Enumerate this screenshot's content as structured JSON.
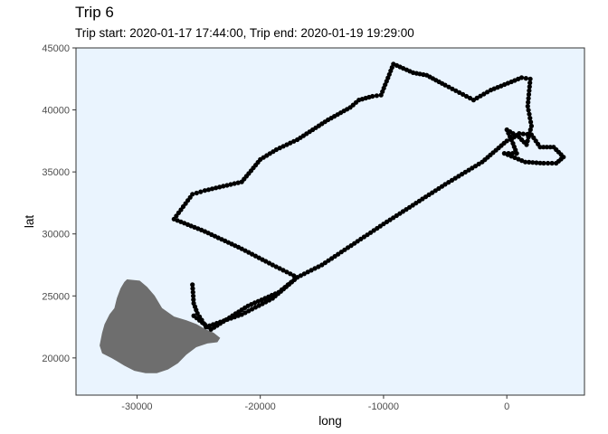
{
  "chart_data": {
    "type": "scatter",
    "title": "Trip 6",
    "subtitle": "Trip start: 2020-01-17 17:44:00, Trip end: 2020-01-19 19:29:00",
    "xlabel": "long",
    "ylabel": "lat",
    "xlim": [
      -34950,
      6300
    ],
    "ylim": [
      17000,
      45000
    ],
    "x_ticks": [
      {
        "value": -30000,
        "label": "-30000"
      },
      {
        "value": -20000,
        "label": "-20000"
      },
      {
        "value": -10000,
        "label": "-10000"
      },
      {
        "value": 0,
        "label": "0"
      }
    ],
    "y_ticks": [
      {
        "value": 20000,
        "label": "20000"
      },
      {
        "value": 25000,
        "label": "25000"
      },
      {
        "value": 30000,
        "label": "30000"
      },
      {
        "value": 35000,
        "label": "35000"
      },
      {
        "value": 40000,
        "label": "40000"
      },
      {
        "value": 45000,
        "label": "45000"
      }
    ],
    "grid": false,
    "legend": "none",
    "colors": {
      "panel_background": "#eaf4fe",
      "panel_border": "#333333",
      "points": "#000000",
      "land": "#6e6e6e"
    },
    "land_polygon": [
      [
        -30800,
        26300
      ],
      [
        -29800,
        26200
      ],
      [
        -29200,
        25700
      ],
      [
        -28600,
        25000
      ],
      [
        -28000,
        24000
      ],
      [
        -27000,
        23300
      ],
      [
        -26000,
        23000
      ],
      [
        -25200,
        22700
      ],
      [
        -24500,
        22300
      ],
      [
        -23800,
        22000
      ],
      [
        -23300,
        21600
      ],
      [
        -23500,
        21300
      ],
      [
        -24300,
        21200
      ],
      [
        -25200,
        20900
      ],
      [
        -26000,
        20300
      ],
      [
        -26700,
        19600
      ],
      [
        -27500,
        19100
      ],
      [
        -28400,
        18800
      ],
      [
        -29300,
        18800
      ],
      [
        -30200,
        19000
      ],
      [
        -31000,
        19400
      ],
      [
        -32000,
        20000
      ],
      [
        -32800,
        20400
      ],
      [
        -33000,
        21000
      ],
      [
        -32800,
        22000
      ],
      [
        -32600,
        22700
      ],
      [
        -32200,
        23500
      ],
      [
        -31800,
        24000
      ],
      [
        -31600,
        24800
      ],
      [
        -31300,
        25600
      ],
      [
        -31000,
        26100
      ]
    ],
    "track_waypoints": [
      [
        -25500,
        25900
      ],
      [
        -25400,
        24400
      ],
      [
        -25100,
        23600
      ],
      [
        -24400,
        22500
      ],
      [
        -21500,
        23500
      ],
      [
        -19000,
        24800
      ],
      [
        -17000,
        26500
      ],
      [
        -19000,
        27500
      ],
      [
        -21500,
        28800
      ],
      [
        -24500,
        30200
      ],
      [
        -27000,
        31200
      ],
      [
        -25500,
        33200
      ],
      [
        -24500,
        33500
      ],
      [
        -21500,
        34200
      ],
      [
        -20000,
        36000
      ],
      [
        -18700,
        36800
      ],
      [
        -17000,
        37600
      ],
      [
        -14500,
        39200
      ],
      [
        -12700,
        40200
      ],
      [
        -12000,
        40800
      ],
      [
        -10900,
        41100
      ],
      [
        -10200,
        41200
      ],
      [
        -9200,
        43700
      ],
      [
        -7600,
        43000
      ],
      [
        -6500,
        42800
      ],
      [
        -5000,
        42000
      ],
      [
        -2700,
        40800
      ],
      [
        -1300,
        41600
      ],
      [
        1200,
        42600
      ],
      [
        1900,
        42500
      ],
      [
        1700,
        40300
      ],
      [
        2000,
        38700
      ],
      [
        1600,
        37200
      ],
      [
        1000,
        37800
      ],
      [
        0,
        38400
      ],
      [
        500,
        37300
      ],
      [
        800,
        36500
      ],
      [
        -200,
        36500
      ],
      [
        1500,
        35800
      ],
      [
        3000,
        35700
      ],
      [
        4000,
        35700
      ],
      [
        4600,
        36200
      ],
      [
        3800,
        37000
      ],
      [
        2700,
        37000
      ],
      [
        2000,
        38000
      ],
      [
        1000,
        38100
      ],
      [
        600,
        37800
      ],
      [
        0,
        37500
      ],
      [
        -2000,
        35800
      ],
      [
        -5000,
        34000
      ],
      [
        -10000,
        30800
      ],
      [
        -15000,
        27500
      ],
      [
        -17000,
        26500
      ],
      [
        -18500,
        25300
      ],
      [
        -21000,
        24200
      ],
      [
        -24000,
        22300
      ],
      [
        -25400,
        23400
      ]
    ]
  }
}
